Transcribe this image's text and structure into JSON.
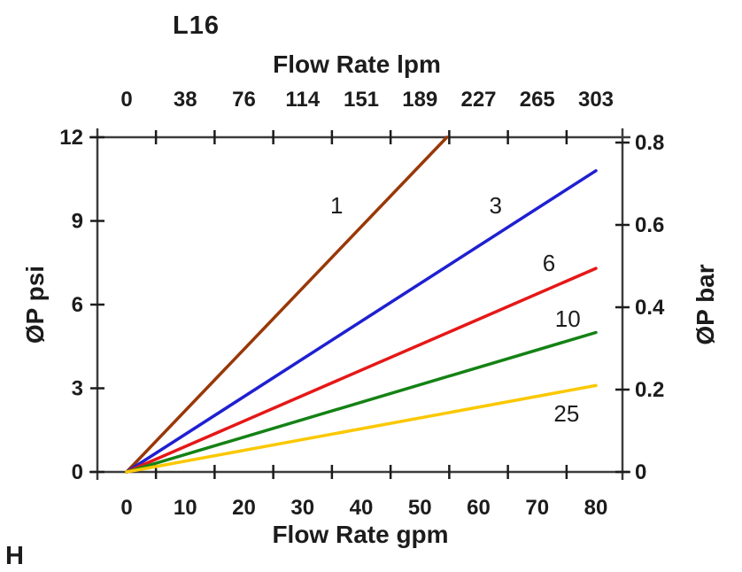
{
  "header": {
    "title": "L16",
    "corner_label": "H"
  },
  "axis_titles": {
    "top": "Flow Rate lpm",
    "bottom": "Flow Rate gpm",
    "left": "ØP psi",
    "right": "ØP bar"
  },
  "colors": {
    "axis_line": "#3c3c3c",
    "tick": "#1c1c1c",
    "text": "#1c1c1c",
    "background": "#ffffff"
  },
  "chart_data": {
    "type": "line",
    "title": "L16",
    "xlabel_bottom": "Flow Rate gpm",
    "xlabel_top": "Flow Rate lpm",
    "ylabel_left": "ØP psi",
    "ylabel_right": "ØP bar",
    "x_axis_bottom": {
      "unit": "gpm",
      "range": [
        0,
        85
      ],
      "tick_values": [
        0,
        10,
        20,
        30,
        40,
        50,
        60,
        70,
        80
      ],
      "minor_tick_values": [
        5,
        15,
        25,
        35,
        45,
        55,
        65,
        75
      ]
    },
    "x_axis_top": {
      "unit": "lpm",
      "tick_labels": [
        "0",
        "38",
        "76",
        "114",
        "151",
        "189",
        "227",
        "265",
        "303"
      ],
      "tick_positions_gpm": [
        0,
        10,
        20,
        30,
        40,
        50,
        60,
        70,
        80
      ]
    },
    "y_axis_left": {
      "unit": "psi",
      "range": [
        0,
        12
      ],
      "tick_values": [
        0,
        3,
        6,
        9,
        12
      ]
    },
    "y_axis_right": {
      "unit": "bar",
      "range": [
        0,
        0.8
      ],
      "tick_labels": [
        "0",
        "0.2",
        "0.4",
        "0.6",
        "0.8"
      ],
      "tick_values_bar": [
        0,
        0.2,
        0.4,
        0.6,
        0.8
      ]
    },
    "grid": false,
    "legend": "inline-labels",
    "series": [
      {
        "name": "1",
        "color": "#993808",
        "points_gpm_psi": [
          [
            0,
            0
          ],
          [
            54.6,
            12
          ]
        ],
        "label_pos_gpm_psi": [
          35.8,
          9.55
        ]
      },
      {
        "name": "3",
        "color": "#1f1fd2",
        "points_gpm_psi": [
          [
            0,
            0
          ],
          [
            80,
            10.8
          ]
        ],
        "label_pos_gpm_psi": [
          62.9,
          9.55
        ]
      },
      {
        "name": "6",
        "color": "#e61717",
        "points_gpm_psi": [
          [
            0,
            0
          ],
          [
            80,
            7.3
          ]
        ],
        "label_pos_gpm_psi": [
          72.0,
          7.5
        ]
      },
      {
        "name": "10",
        "color": "#148214",
        "points_gpm_psi": [
          [
            0,
            0
          ],
          [
            80,
            5.0
          ]
        ],
        "label_pos_gpm_psi": [
          75.2,
          5.5
        ]
      },
      {
        "name": "25",
        "color": "#fac800",
        "points_gpm_psi": [
          [
            0,
            0
          ],
          [
            80,
            3.1
          ]
        ],
        "label_pos_gpm_psi": [
          75.0,
          2.1
        ]
      }
    ]
  }
}
